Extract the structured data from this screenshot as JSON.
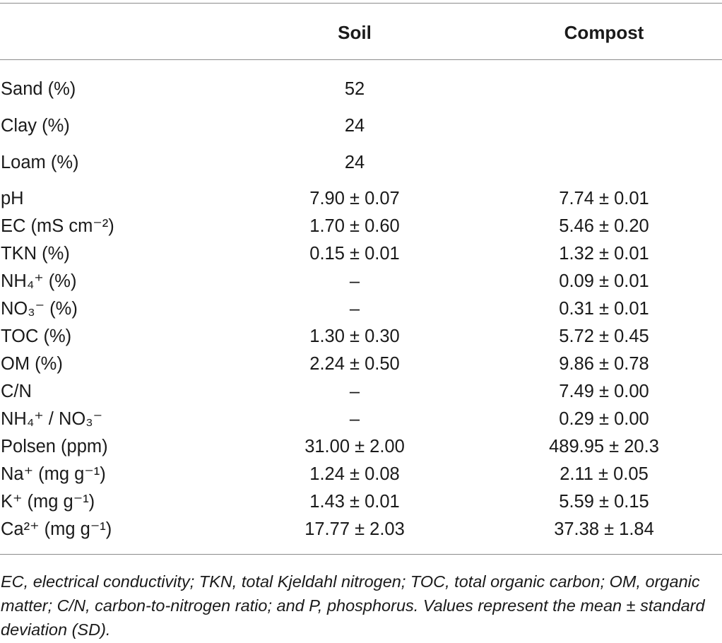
{
  "table": {
    "headers": {
      "parameter": "",
      "soil": "Soil",
      "compost": "Compost"
    },
    "rows": [
      {
        "label": "Sand (%)",
        "soil": "52",
        "compost": ""
      },
      {
        "label": "Clay (%)",
        "soil": "24",
        "compost": ""
      },
      {
        "label": "Loam (%)",
        "soil": "24",
        "compost": ""
      },
      {
        "label": "pH",
        "soil": "7.90 ± 0.07",
        "compost": "7.74 ± 0.01"
      },
      {
        "label": "EC (mS cm⁻²)",
        "soil": "1.70 ± 0.60",
        "compost": "5.46 ± 0.20"
      },
      {
        "label": "TKN (%)",
        "soil": "0.15 ± 0.01",
        "compost": "1.32 ± 0.01"
      },
      {
        "label": "NH₄⁺ (%)",
        "soil": "–",
        "compost": "0.09 ± 0.01"
      },
      {
        "label": "NO₃⁻ (%)",
        "soil": "–",
        "compost": "0.31 ± 0.01"
      },
      {
        "label": "TOC (%)",
        "soil": "1.30 ± 0.30",
        "compost": "5.72 ± 0.45"
      },
      {
        "label": "OM (%)",
        "soil": "2.24 ± 0.50",
        "compost": "9.86 ± 0.78"
      },
      {
        "label": "C/N",
        "soil": "–",
        "compost": "7.49 ± 0.00"
      },
      {
        "label": "NH₄⁺ / NO₃⁻",
        "soil": "–",
        "compost": "0.29 ± 0.00"
      },
      {
        "label": "Polsen (ppm)",
        "soil": "31.00 ± 2.00",
        "compost": "489.95 ± 20.3"
      },
      {
        "label": "Na⁺ (mg g⁻¹)",
        "soil": "1.24 ± 0.08",
        "compost": "2.11 ± 0.05"
      },
      {
        "label": "K⁺ (mg g⁻¹)",
        "soil": "1.43 ± 0.01",
        "compost": "5.59 ± 0.15"
      },
      {
        "label": "Ca²⁺ (mg g⁻¹)",
        "soil": "17.77 ± 2.03",
        "compost": "37.38 ± 1.84"
      }
    ],
    "footnote": "EC, electrical conductivity; TKN, total Kjeldahl nitrogen; TOC, total organic carbon; OM, organic matter; C/N, carbon-to-nitrogen ratio; and P, phosphorus. Values represent the mean ± standard deviation (SD)."
  }
}
